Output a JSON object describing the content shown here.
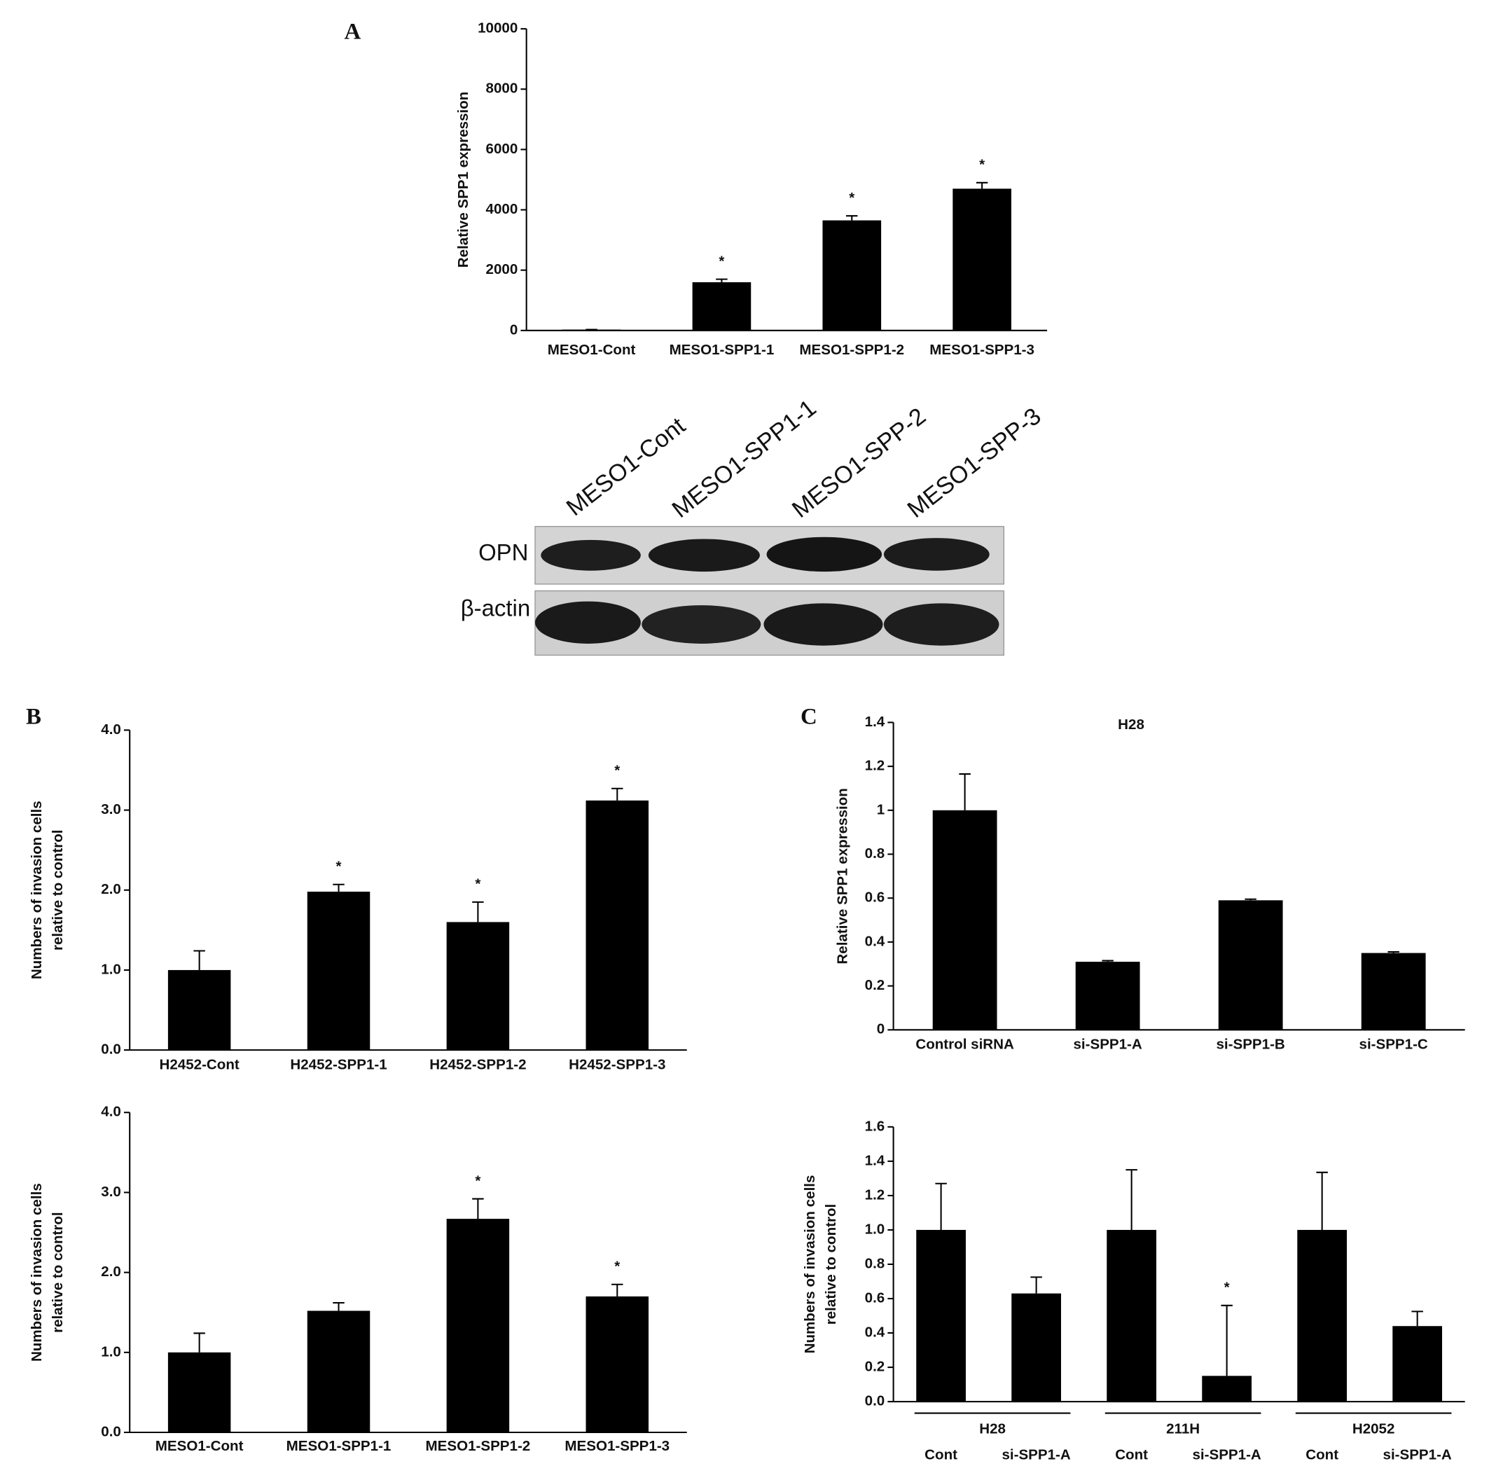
{
  "panel_labels": [
    "A",
    "B",
    "C"
  ],
  "blot": {
    "lane_labels": [
      "MESO1-Cont",
      "MESO1-SPP1-1",
      "MESO1-SPP-2",
      "MESO1-SPP-3"
    ],
    "row_labels": [
      "OPN",
      "β-actin"
    ]
  },
  "chart_data": [
    {
      "type": "bar",
      "y_label": [
        "Relative  SPP1 expression"
      ],
      "categories": [
        "MESO1-Cont",
        "MESO1-SPP1-1",
        "MESO1-SPP1-2",
        "MESO1-SPP1-3"
      ],
      "values": [
        30,
        1600,
        3650,
        4700
      ],
      "errors": [
        0,
        100,
        150,
        200
      ],
      "significance": [
        null,
        "*",
        "*",
        "*"
      ],
      "color": "#000000",
      "ylim": [
        0,
        10000
      ],
      "yticks": [
        0,
        2000,
        4000,
        6000,
        8000,
        10000
      ]
    },
    {
      "type": "bar",
      "y_label": [
        "Numbers of invasion cells",
        "relative to control"
      ],
      "categories": [
        "H2452-Cont",
        "H2452-SPP1-1",
        "H2452-SPP1-2",
        "H2452-SPP1-3"
      ],
      "values": [
        1.0,
        1.98,
        1.6,
        3.12
      ],
      "errors": [
        0.24,
        0.09,
        0.25,
        0.15
      ],
      "significance": [
        null,
        "*",
        "*",
        "*"
      ],
      "color": "#000000",
      "ylim": [
        0,
        4
      ],
      "yticks": [
        {
          "value": 0,
          "label": "0.0"
        },
        {
          "value": 1,
          "label": "1.0"
        },
        {
          "value": 2,
          "label": "2.0"
        },
        {
          "value": 3,
          "label": "3.0"
        },
        {
          "value": 4,
          "label": "4.0"
        }
      ]
    },
    {
      "type": "bar",
      "y_label": [
        "Numbers of invasion cells",
        "relative to control"
      ],
      "categories": [
        "MESO1-Cont",
        "MESO1-SPP1-1",
        "MESO1-SPP1-2",
        "MESO1-SPP1-3"
      ],
      "values": [
        1.0,
        1.52,
        2.67,
        1.7
      ],
      "errors": [
        0.24,
        0.1,
        0.25,
        0.15
      ],
      "significance": [
        null,
        null,
        "*",
        "*"
      ],
      "color": "#000000",
      "ylim": [
        0,
        4
      ],
      "yticks": [
        {
          "value": 0,
          "label": "0.0"
        },
        {
          "value": 1,
          "label": "1.0"
        },
        {
          "value": 2,
          "label": "2.0"
        },
        {
          "value": 3,
          "label": "3.0"
        },
        {
          "value": 4,
          "label": "4.0"
        }
      ]
    },
    {
      "type": "bar",
      "title": "H28",
      "y_label": [
        "Relative SPP1 expression"
      ],
      "categories": [
        "Control siRNA",
        "si-SPP1-A",
        "si-SPP1-B",
        "si-SPP1-C"
      ],
      "values": [
        1.0,
        0.31,
        0.59,
        0.35
      ],
      "errors": [
        0.165,
        0.005,
        0.005,
        0.005
      ],
      "color": "#000000",
      "ylim": [
        0,
        1.4
      ],
      "yticks": [
        0,
        0.2,
        0.4,
        0.6,
        0.8,
        1,
        1.2,
        1.4
      ]
    },
    {
      "type": "bar",
      "y_label": [
        "Numbers of invasion cells",
        "relative to control"
      ],
      "groups": [
        "H28",
        "211H",
        "H2052"
      ],
      "categories": [
        "Cont",
        "si-SPP1-A",
        "Cont",
        "si-SPP1-A",
        "Cont",
        "si-SPP1-A"
      ],
      "values": [
        1.0,
        0.63,
        1.0,
        0.15,
        1.0,
        0.44
      ],
      "errors": [
        0.27,
        0.095,
        0.35,
        0.41,
        0.335,
        0.085
      ],
      "significance": [
        null,
        null,
        null,
        "*",
        null,
        null
      ],
      "color": "#000000",
      "ylim": [
        0,
        1.6
      ],
      "yticks": [
        {
          "value": 0,
          "label": "0.0"
        },
        0.2,
        0.4,
        0.6,
        0.8,
        {
          "value": 1,
          "label": "1.0"
        },
        1.2,
        1.4,
        1.6
      ]
    }
  ]
}
